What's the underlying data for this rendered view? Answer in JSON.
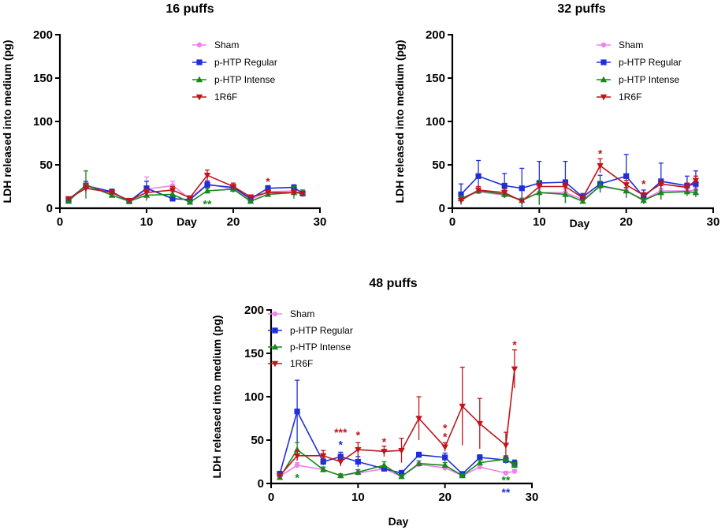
{
  "colors": {
    "Sham": "#ee82ee",
    "p-HTP Regular": "#1f2fd8",
    "p-HTP Intense": "#15891a",
    "1R6F": "#c0151b"
  },
  "chart_data": [
    {
      "type": "line",
      "title": "16 puffs",
      "xlabel": "Day",
      "ylabel": "LDH released into medium (pg)",
      "xlim": [
        0,
        30
      ],
      "ylim": [
        0,
        200
      ],
      "xticks": [
        "0",
        "10",
        "20",
        "30"
      ],
      "yticks": [
        "0",
        "50",
        "100",
        "150",
        "200"
      ],
      "legend": [
        "Sham",
        "p-HTP Regular",
        "p-HTP Intense",
        "1R6F"
      ],
      "series": [
        {
          "name": "Sham",
          "x": [
            1,
            3,
            6,
            8,
            10,
            13,
            15,
            17,
            20,
            22,
            24,
            27,
            28
          ],
          "values": [
            9,
            25,
            18,
            8,
            22,
            26,
            11,
            28,
            22,
            10,
            19,
            20,
            16
          ],
          "err": [
            2,
            5,
            2,
            1,
            14,
            5,
            2,
            4,
            3,
            1,
            2,
            2,
            2
          ]
        },
        {
          "name": "p-HTP Regular",
          "x": [
            1,
            3,
            6,
            8,
            10,
            13,
            15,
            17,
            20,
            22,
            24,
            27,
            28
          ],
          "values": [
            10,
            26,
            19,
            8,
            23,
            11,
            10,
            27,
            24,
            11,
            23,
            24,
            17
          ],
          "err": [
            2,
            5,
            3,
            1,
            8,
            3,
            2,
            4,
            3,
            1,
            3,
            3,
            2
          ]
        },
        {
          "name": "p-HTP Intense",
          "x": [
            1,
            3,
            6,
            8,
            10,
            13,
            15,
            17,
            20,
            22,
            24,
            27,
            28
          ],
          "values": [
            8,
            27,
            15,
            8,
            15,
            16,
            7,
            20,
            22,
            8,
            16,
            18,
            18
          ],
          "err": [
            2,
            16,
            2,
            1,
            6,
            3,
            2,
            3,
            4,
            1,
            2,
            7,
            3
          ]
        },
        {
          "name": "1R6F",
          "x": [
            1,
            3,
            6,
            8,
            10,
            13,
            15,
            17,
            20,
            22,
            24,
            27,
            28
          ],
          "values": [
            11,
            23,
            18,
            9,
            18,
            21,
            12,
            38,
            25,
            13,
            18,
            18,
            17
          ],
          "err": [
            2,
            5,
            2,
            1,
            4,
            4,
            2,
            6,
            4,
            2,
            3,
            2,
            2
          ]
        }
      ],
      "annotations": [
        {
          "text": "*",
          "x": 24,
          "y": 31,
          "series": "1R6F"
        },
        {
          "text": "**",
          "x": 17,
          "y": 5,
          "series": "p-HTP Intense"
        }
      ]
    },
    {
      "type": "line",
      "title": "32 puffs",
      "xlabel": "Day",
      "ylabel": "LDH released into medium (pg)",
      "xlim": [
        0,
        30
      ],
      "ylim": [
        0,
        200
      ],
      "xticks": [
        "0",
        "10",
        "20",
        "30"
      ],
      "yticks": [
        "0",
        "50",
        "100",
        "150",
        "200"
      ],
      "legend": [
        "Sham",
        "p-HTP Regular",
        "p-HTP Intense",
        "1R6F"
      ],
      "series": [
        {
          "name": "Sham",
          "x": [
            1,
            3,
            6,
            8,
            10,
            13,
            15,
            17,
            20,
            22,
            24,
            27,
            28
          ],
          "values": [
            11,
            19,
            15,
            10,
            18,
            18,
            10,
            25,
            20,
            10,
            20,
            20,
            21
          ],
          "err": [
            2,
            3,
            3,
            2,
            4,
            4,
            2,
            3,
            3,
            2,
            3,
            3,
            3
          ]
        },
        {
          "name": "p-HTP Regular",
          "x": [
            1,
            3,
            6,
            8,
            10,
            13,
            15,
            17,
            20,
            22,
            24,
            27,
            28
          ],
          "values": [
            16,
            37,
            26,
            23,
            29,
            30,
            13,
            28,
            37,
            13,
            31,
            26,
            28
          ],
          "err": [
            12,
            18,
            14,
            23,
            25,
            24,
            4,
            10,
            25,
            8,
            21,
            11,
            15
          ]
        },
        {
          "name": "p-HTP Intense",
          "x": [
            1,
            3,
            6,
            8,
            10,
            13,
            15,
            17,
            20,
            22,
            24,
            27,
            28
          ],
          "values": [
            11,
            20,
            16,
            9,
            18,
            16,
            8,
            26,
            20,
            9,
            18,
            19,
            18
          ],
          "err": [
            3,
            3,
            3,
            2,
            14,
            10,
            2,
            5,
            4,
            2,
            8,
            5,
            3
          ]
        },
        {
          "name": "1R6F",
          "x": [
            1,
            3,
            6,
            8,
            10,
            13,
            15,
            17,
            20,
            22,
            24,
            27,
            28
          ],
          "values": [
            9,
            21,
            18,
            8,
            25,
            25,
            12,
            49,
            27,
            15,
            28,
            24,
            32
          ],
          "err": [
            3,
            4,
            4,
            2,
            4,
            5,
            2,
            8,
            5,
            3,
            5,
            5,
            5
          ]
        }
      ],
      "annotations": [
        {
          "text": "*",
          "x": 17,
          "y": 63,
          "series": "1R6F"
        },
        {
          "text": "*",
          "x": 22,
          "y": 28,
          "series": "1R6F"
        }
      ]
    },
    {
      "type": "line",
      "title": "48 puffs",
      "xlabel": "Day",
      "ylabel": "LDH released into medium (pg)",
      "xlim": [
        0,
        30
      ],
      "ylim": [
        0,
        200
      ],
      "xticks": [
        "0",
        "10",
        "20",
        "30"
      ],
      "yticks": [
        "0",
        "50",
        "100",
        "150",
        "200"
      ],
      "legend": [
        "Sham",
        "p-HTP Regular",
        "p-HTP Intense",
        "1R6F"
      ],
      "series": [
        {
          "name": "Sham",
          "x": [
            1,
            3,
            6,
            8,
            10,
            13,
            15,
            17,
            20,
            22,
            24,
            27,
            28
          ],
          "values": [
            8,
            21,
            16,
            9,
            12,
            17,
            8,
            22,
            18,
            9,
            19,
            12,
            14
          ],
          "err": [
            2,
            3,
            2,
            2,
            3,
            3,
            2,
            2,
            3,
            1,
            2,
            2,
            2
          ]
        },
        {
          "name": "p-HTP Regular",
          "x": [
            1,
            3,
            6,
            8,
            10,
            13,
            15,
            17,
            20,
            22,
            24,
            27,
            28
          ],
          "values": [
            11,
            83,
            25,
            31,
            25,
            17,
            12,
            33,
            30,
            11,
            30,
            27,
            23
          ],
          "err": [
            3,
            36,
            4,
            5,
            6,
            3,
            3,
            3,
            5,
            2,
            3,
            4,
            4
          ]
        },
        {
          "name": "p-HTP Intense",
          "x": [
            1,
            3,
            6,
            8,
            10,
            13,
            15,
            17,
            20,
            22,
            24,
            27,
            28
          ],
          "values": [
            7,
            39,
            16,
            9,
            13,
            21,
            8,
            23,
            21,
            9,
            24,
            28,
            21
          ],
          "err": [
            2,
            8,
            3,
            2,
            3,
            4,
            2,
            3,
            3,
            2,
            3,
            4,
            3
          ]
        },
        {
          "name": "1R6F",
          "x": [
            1,
            3,
            6,
            8,
            10,
            13,
            15,
            17,
            20,
            22,
            24,
            27,
            28
          ],
          "values": [
            9,
            32,
            32,
            25,
            39,
            37,
            38,
            75,
            42,
            89,
            69,
            44,
            132
          ],
          "err": [
            2,
            6,
            6,
            5,
            8,
            6,
            14,
            25,
            5,
            45,
            29,
            15,
            22
          ]
        }
      ],
      "annotations": [
        {
          "text": "*",
          "x": 3,
          "y": 7,
          "series": "p-HTP Intense"
        },
        {
          "text": "***",
          "x": 8,
          "y": 59,
          "series": "1R6F"
        },
        {
          "text": "*",
          "x": 8,
          "y": 45,
          "series": "p-HTP Regular"
        },
        {
          "text": "*",
          "x": 10,
          "y": 56,
          "series": "1R6F"
        },
        {
          "text": "*",
          "x": 13,
          "y": 48,
          "series": "1R6F"
        },
        {
          "text": "*",
          "x": 20,
          "y": 64,
          "series": "1R6F"
        },
        {
          "text": "*",
          "x": 20,
          "y": 54,
          "series": "1R6F"
        },
        {
          "text": "**",
          "x": 27,
          "y": 4,
          "series": "p-HTP Intense"
        },
        {
          "text": "**",
          "x": 27,
          "y": -10,
          "series": "p-HTP Regular"
        },
        {
          "text": "*",
          "x": 28,
          "y": 160,
          "series": "1R6F"
        }
      ]
    }
  ]
}
